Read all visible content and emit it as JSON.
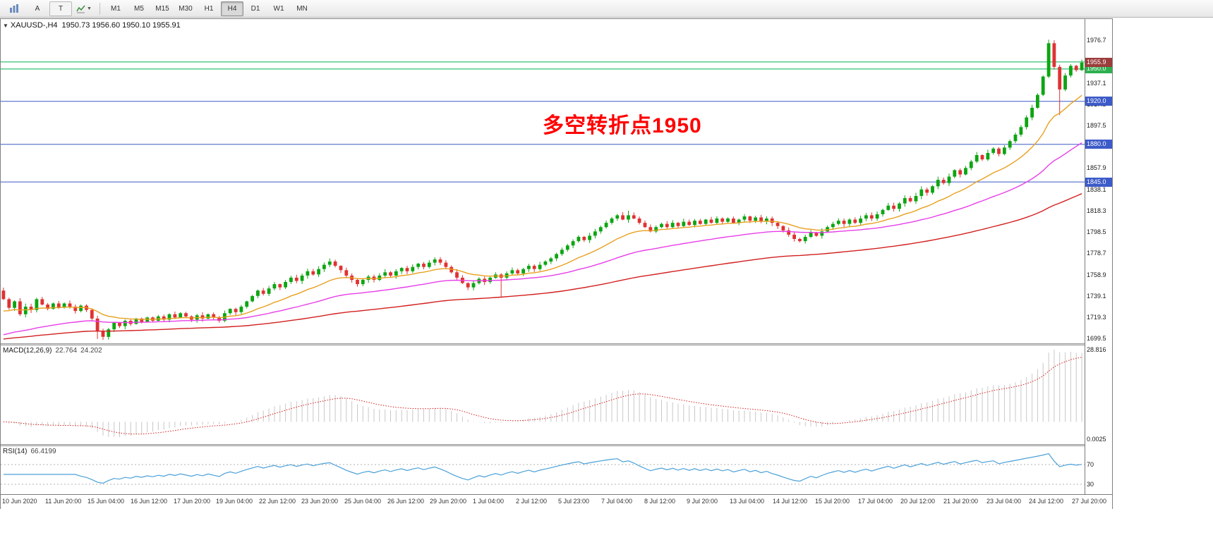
{
  "toolbar": {
    "tool_a_label": "A",
    "tool_t_label": "T",
    "timeframes": [
      "M1",
      "M5",
      "M15",
      "M30",
      "H1",
      "H4",
      "D1",
      "W1",
      "MN"
    ],
    "active_timeframe": "H4"
  },
  "chart": {
    "header_symbol": "XAUUSD-,H4",
    "header_ohlc": "1950.73 1956.60 1950.10 1955.91",
    "annotation_text": "多空转折点1950",
    "annotation_color": "#ff0000",
    "price_axis_labels": [
      "1976.7",
      "1956.9",
      "1937.1",
      "1917.3",
      "1897.5",
      "1877.7",
      "1857.9",
      "1838.1",
      "1818.3",
      "1798.5",
      "1778.7",
      "1758.9",
      "1739.1",
      "1719.3",
      "1699.5"
    ],
    "price_tags": [
      {
        "text": "1950.0",
        "price": 1950.0,
        "bg": "#2eb050"
      },
      {
        "text": "1920.0",
        "price": 1920.0,
        "bg": "#3c5ac8"
      },
      {
        "text": "1880.0",
        "price": 1880.0,
        "bg": "#3c5ac8"
      },
      {
        "text": "1845.0",
        "price": 1845.0,
        "bg": "#3c5ac8"
      },
      {
        "text": "1955.9",
        "price": 1955.91,
        "bg": "#9b3b3b"
      }
    ]
  },
  "macd_panel": {
    "label": "MACD(12,26,9)",
    "value_main": "22.764",
    "value_signal": "24.202",
    "scale_top": "28.816",
    "scale_bottom": "0.0025"
  },
  "rsi_panel": {
    "label": "RSI(14)",
    "value": "66.4199",
    "level_top": "70",
    "level_bottom": "30"
  },
  "time_axis_labels": [
    "10 Jun 2020",
    "11 Jun 20:00",
    "15 Jun 04:00",
    "16 Jun 12:00",
    "17 Jun 20:00",
    "19 Jun 04:00",
    "22 Jun 12:00",
    "23 Jun 20:00",
    "25 Jun 04:00",
    "26 Jun 12:00",
    "29 Jun 20:00",
    "1 Jul 04:00",
    "2 Jul 12:00",
    "5 Jul 23:00",
    "7 Jul 04:00",
    "8 Jul 12:00",
    "9 Jul 20:00",
    "13 Jul 04:00",
    "14 Jul 12:00",
    "15 Jul 20:00",
    "17 Jul 04:00",
    "20 Jul 12:00",
    "21 Jul 20:00",
    "23 Jul 04:00",
    "24 Jul 12:00",
    "27 Jul 20:00"
  ],
  "chart_data": {
    "type": "candlestick",
    "symbol": "XAUUSD",
    "timeframe": "H4",
    "ohlc_current": {
      "open": 1950.73,
      "high": 1956.6,
      "low": 1950.1,
      "close": 1955.91
    },
    "y_axis": {
      "min": 1695.0,
      "max": 1996.5
    },
    "first_open": 1744,
    "closes": [
      1736,
      1728,
      1734,
      1722,
      1729,
      1726,
      1736,
      1731,
      1727,
      1732,
      1728,
      1732,
      1729,
      1725,
      1730,
      1726,
      1718,
      1706,
      1701,
      1708,
      1714,
      1711,
      1716,
      1713,
      1718,
      1715,
      1719,
      1716,
      1720,
      1717,
      1722,
      1719,
      1723,
      1720,
      1717,
      1721,
      1718,
      1722,
      1719,
      1716,
      1723,
      1727,
      1724,
      1729,
      1734,
      1739,
      1744,
      1741,
      1746,
      1750,
      1747,
      1752,
      1756,
      1753,
      1758,
      1762,
      1759,
      1764,
      1768,
      1771,
      1767,
      1763,
      1758,
      1754,
      1750,
      1754,
      1757,
      1754,
      1758,
      1761,
      1758,
      1762,
      1765,
      1762,
      1766,
      1769,
      1766,
      1770,
      1773,
      1770,
      1766,
      1761,
      1756,
      1751,
      1747,
      1751,
      1755,
      1752,
      1756,
      1759,
      1756,
      1760,
      1763,
      1760,
      1764,
      1767,
      1764,
      1768,
      1771,
      1774,
      1778,
      1782,
      1786,
      1790,
      1794,
      1791,
      1795,
      1799,
      1803,
      1807,
      1811,
      1814,
      1810,
      1814,
      1811,
      1807,
      1803,
      1799,
      1803,
      1806,
      1803,
      1807,
      1804,
      1808,
      1805,
      1809,
      1806,
      1810,
      1807,
      1811,
      1808,
      1811,
      1807,
      1810,
      1813,
      1809,
      1812,
      1808,
      1811,
      1807,
      1804,
      1800,
      1796,
      1792,
      1790,
      1794,
      1798,
      1795,
      1799,
      1803,
      1806,
      1809,
      1806,
      1810,
      1807,
      1811,
      1814,
      1811,
      1815,
      1819,
      1823,
      1820,
      1825,
      1830,
      1827,
      1832,
      1838,
      1835,
      1841,
      1847,
      1844,
      1850,
      1856,
      1852,
      1858,
      1864,
      1870,
      1866,
      1872,
      1876,
      1871,
      1877,
      1883,
      1889,
      1896,
      1905,
      1914,
      1926,
      1943,
      1974,
      1952,
      1931,
      1944,
      1953,
      1949,
      1956
    ],
    "high_overrides": {
      "113": 1818.3,
      "189": 1977.3
    },
    "low_overrides": {
      "17": 1699.0,
      "90": 1738.0,
      "191": 1907.2
    },
    "horizontal_lines": [
      {
        "price": 1956.6,
        "color": "#00b050"
      },
      {
        "price": 1950.0,
        "color": "#00b050"
      },
      {
        "price": 1920.0,
        "color": "#3c5ac8"
      },
      {
        "price": 1880.0,
        "color": "#3c5ac8"
      },
      {
        "price": 1845.0,
        "color": "#3c5ac8"
      }
    ],
    "moving_averages": [
      {
        "name": "ma-fast",
        "period": 16,
        "seed": 1725,
        "color": "#e8a020"
      },
      {
        "name": "ma-mid",
        "period": 44,
        "seed": 1703,
        "color": "#e83ee8"
      },
      {
        "name": "ma-slow",
        "period": 110,
        "seed": 1699,
        "color": "#d21f1f"
      }
    ],
    "candle_up_color": "#0da512",
    "candle_down_color": "#e03232",
    "indicators": {
      "macd": {
        "fast": 12,
        "slow": 26,
        "signal": 9,
        "histogram_color": "#c8c8c8",
        "signal_color": "#d21f1f"
      },
      "rsi": {
        "period": 14,
        "color": "#4aa0d8",
        "levels": [
          70,
          30
        ],
        "level_color": "#b0b0b0"
      }
    }
  }
}
